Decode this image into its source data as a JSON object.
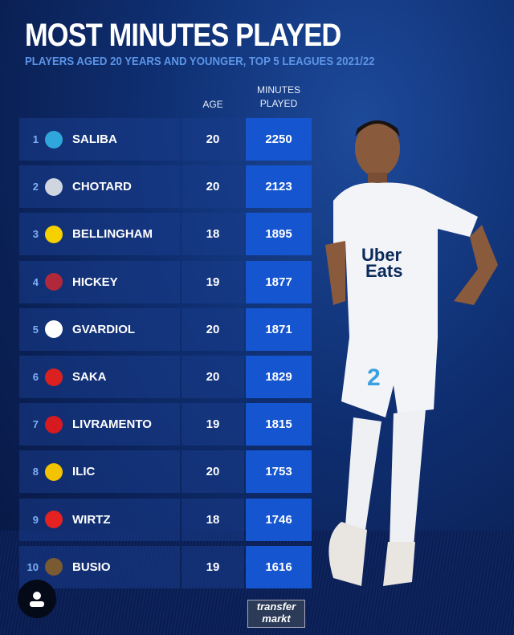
{
  "title": "MOST MINUTES PLAYED",
  "subtitle": "PLAYERS AGED 20 YEARS AND YOUNGER, TOP 5 LEAGUES 2021/22",
  "headers": {
    "age": "AGE",
    "minutes_line1": "MINUTES",
    "minutes_line2": "PLAYED"
  },
  "colors": {
    "minutes_cell": "#1556d0",
    "rank": "#7fb0f5",
    "subtitle": "#5c95e8"
  },
  "chart_data": {
    "type": "table",
    "title": "MOST MINUTES PLAYED",
    "subtitle": "PLAYERS AGED 20 YEARS AND YOUNGER, TOP 5 LEAGUES 2021/22",
    "columns": [
      "",
      "",
      "AGE",
      "MINUTES PLAYED"
    ],
    "rows": [
      {
        "rank": "1",
        "name": "SALIBA",
        "age": "20",
        "minutes": "2250",
        "badge": "marseille-crest",
        "badge_color": "#2fa6dc"
      },
      {
        "rank": "2",
        "name": "CHOTARD",
        "age": "20",
        "minutes": "2123",
        "badge": "montpellier-crest",
        "badge_color": "#cfd6e0"
      },
      {
        "rank": "3",
        "name": "BELLINGHAM",
        "age": "18",
        "minutes": "1895",
        "badge": "dortmund-crest",
        "badge_color": "#f5d100"
      },
      {
        "rank": "4",
        "name": "HICKEY",
        "age": "19",
        "minutes": "1877",
        "badge": "bologna-crest",
        "badge_color": "#b0283a"
      },
      {
        "rank": "5",
        "name": "GVARDIOL",
        "age": "20",
        "minutes": "1871",
        "badge": "leipzig-crest",
        "badge_color": "#ffffff"
      },
      {
        "rank": "6",
        "name": "SAKA",
        "age": "20",
        "minutes": "1829",
        "badge": "arsenal-crest",
        "badge_color": "#db2020"
      },
      {
        "rank": "7",
        "name": "LIVRAMENTO",
        "age": "19",
        "minutes": "1815",
        "badge": "southampton-crest",
        "badge_color": "#d71920"
      },
      {
        "rank": "8",
        "name": "ILIC",
        "age": "20",
        "minutes": "1753",
        "badge": "verona-crest",
        "badge_color": "#f3c300"
      },
      {
        "rank": "9",
        "name": "WIRTZ",
        "age": "18",
        "minutes": "1746",
        "badge": "leverkusen-crest",
        "badge_color": "#e32221"
      },
      {
        "rank": "10",
        "name": "BUSIO",
        "age": "19",
        "minutes": "1616",
        "badge": "venezia-crest",
        "badge_color": "#7a5a30"
      }
    ]
  },
  "logo": {
    "line1": "transfer",
    "line2": "markt"
  }
}
